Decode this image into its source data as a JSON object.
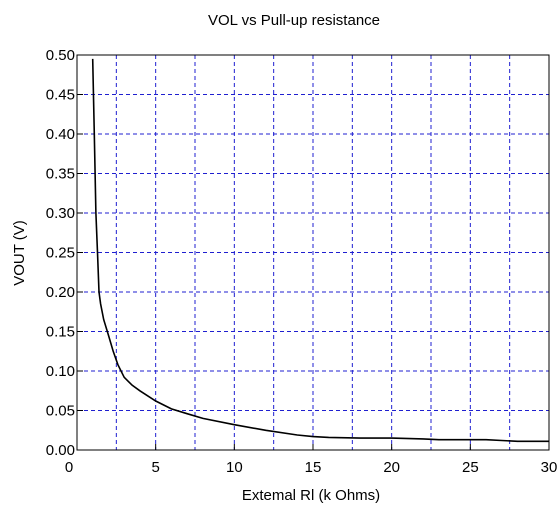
{
  "chart_data": {
    "type": "line",
    "title": "VOL vs Pull-up resistance",
    "xlabel": "Extemal Rl (k  Ohms)",
    "ylabel": "VOUT (V)",
    "xlim": [
      0,
      30
    ],
    "ylim": [
      0,
      0.5
    ],
    "grid": true,
    "grid_color": "#1f1fd0",
    "line_color": "#000000",
    "x_ticks": [
      0,
      5,
      10,
      15,
      20,
      25,
      30
    ],
    "x_tick_labels": [
      "0",
      "5",
      "10",
      "15",
      "20",
      "25",
      "30"
    ],
    "x_grid_lines": [
      0,
      2.5,
      5,
      7.5,
      10,
      12.5,
      15,
      17.5,
      20,
      22.5,
      25,
      27.5,
      30
    ],
    "y_ticks": [
      0,
      0.05,
      0.1,
      0.15,
      0.2,
      0.25,
      0.3,
      0.35,
      0.4,
      0.45,
      0.5
    ],
    "y_tick_labels": [
      "0.00",
      "0.05",
      "0.10",
      "0.15",
      "0.20",
      "0.25",
      "0.30",
      "0.35",
      "0.40",
      "0.45",
      "0.50"
    ],
    "series": [
      {
        "x": [
          1,
          1.1,
          1.2,
          1.3,
          1.4,
          1.5,
          1.7,
          2,
          2.3,
          2.6,
          3,
          3.5,
          4,
          5,
          6,
          7,
          8,
          10,
          12,
          14,
          15,
          16,
          18,
          20,
          22,
          23,
          25,
          26,
          27,
          28,
          30
        ],
        "y": [
          0.495,
          0.4,
          0.3,
          0.25,
          0.2,
          0.185,
          0.165,
          0.145,
          0.125,
          0.108,
          0.092,
          0.082,
          0.075,
          0.062,
          0.052,
          0.046,
          0.04,
          0.032,
          0.025,
          0.019,
          0.017,
          0.016,
          0.015,
          0.015,
          0.014,
          0.013,
          0.013,
          0.013,
          0.012,
          0.011,
          0.011
        ]
      }
    ]
  }
}
